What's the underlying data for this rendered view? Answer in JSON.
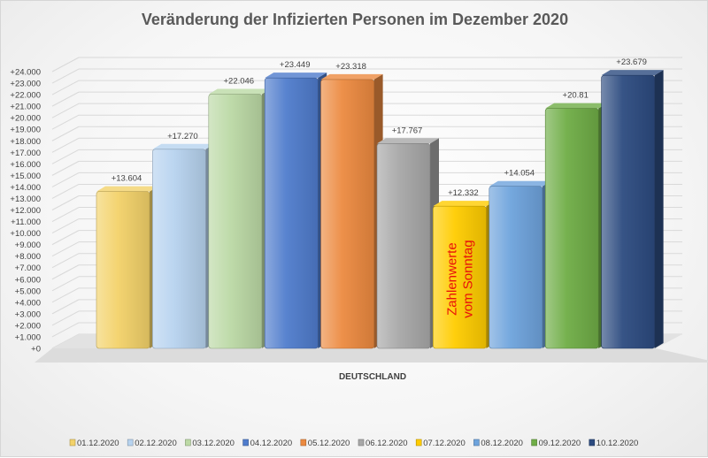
{
  "chart_data": {
    "type": "bar",
    "title": "Veränderung der Infizierten Personen im Dezember 2020",
    "categories": [
      "DEUTSCHLAND"
    ],
    "ylim": [
      0,
      24000
    ],
    "y_tick_step": 1000,
    "grid": true,
    "legend_position": "bottom",
    "series": [
      {
        "name": "01.12.2020",
        "label": "+13.604",
        "values": [
          13604
        ],
        "color": "#f3d26a"
      },
      {
        "name": "02.12.2020",
        "label": "+17.270",
        "values": [
          17270
        ],
        "color": "#b7d3ef"
      },
      {
        "name": "03.12.2020",
        "label": "+22.046",
        "values": [
          22046
        ],
        "color": "#bcd9a5"
      },
      {
        "name": "04.12.2020",
        "label": "+23.449",
        "values": [
          23449
        ],
        "color": "#4f7ccc"
      },
      {
        "name": "05.12.2020",
        "label": "+23.318",
        "values": [
          23318
        ],
        "color": "#ec8a40"
      },
      {
        "name": "06.12.2020",
        "label": "+17.767",
        "values": [
          17767
        ],
        "color": "#a8a8a8"
      },
      {
        "name": "07.12.2020",
        "label": "+12.332",
        "values": [
          12332
        ],
        "color": "#ffcc00"
      },
      {
        "name": "08.12.2020",
        "label": "+14.054",
        "values": [
          14054
        ],
        "color": "#6ea3dc"
      },
      {
        "name": "09.12.2020",
        "label": "+20.81",
        "values": [
          20810
        ],
        "color": "#6fad46"
      },
      {
        "name": "10.12.2020",
        "label": "+23.679",
        "values": [
          23679
        ],
        "color": "#2c4b80"
      }
    ],
    "y_tick_labels": [
      "+0",
      "+1.000",
      "+2.000",
      "+3.000",
      "+4.000",
      "+5.000",
      "+6.000",
      "+7.000",
      "+8.000",
      "+9.000",
      "+10.000",
      "+11.000",
      "+12.000",
      "+13.000",
      "+14.000",
      "+15.000",
      "+16.000",
      "+17.000",
      "+18.000",
      "+19.000",
      "+20.000",
      "+21.000",
      "+22.000",
      "+23.000",
      "+24.000"
    ],
    "annotation": {
      "lines": [
        "Zahlenwerte",
        "vom Sonntag"
      ],
      "target_series": "07.12.2020",
      "color": "#e8100a"
    }
  }
}
